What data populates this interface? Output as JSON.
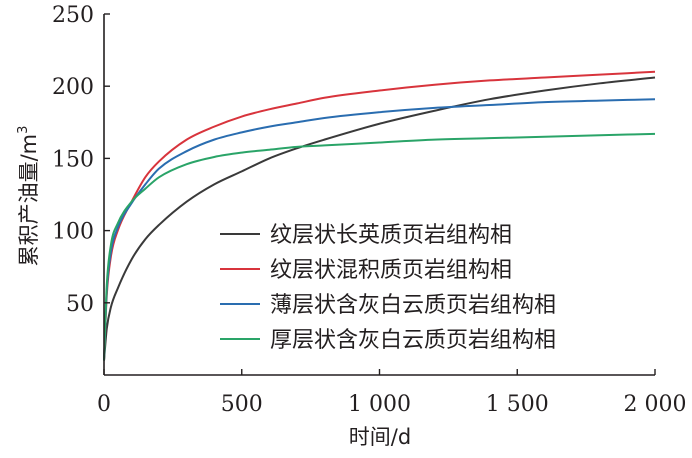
{
  "chart_data": {
    "type": "line",
    "xlabel": "时间/d",
    "ylabel": "累积产油量/m",
    "ylabel_sup": "3",
    "xlim": [
      0,
      2000
    ],
    "ylim": [
      0,
      250
    ],
    "xticks": [
      0,
      500,
      1000,
      1500,
      2000
    ],
    "xtick_labels": [
      "0",
      "500",
      "1 000",
      "1 500",
      "2 000"
    ],
    "yticks": [
      50,
      100,
      150,
      200,
      250
    ],
    "ytick_labels": [
      "50",
      "100",
      "150",
      "200",
      "250"
    ],
    "grid": false,
    "legend_position": "right",
    "series": [
      {
        "name": "纹层状长英质页岩组构相",
        "color": "#3a3a3a",
        "x": [
          0,
          10,
          25,
          50,
          100,
          150,
          200,
          300,
          400,
          500,
          600,
          700,
          800,
          1000,
          1200,
          1400,
          1600,
          1800,
          2000
        ],
        "y": [
          10,
          32,
          47,
          60,
          80,
          94,
          104,
          120,
          132,
          141,
          150,
          157,
          163,
          174,
          183,
          191,
          197,
          202,
          206
        ]
      },
      {
        "name": "纹层状混积质页岩组构相",
        "color": "#d8343c",
        "x": [
          0,
          10,
          25,
          50,
          100,
          150,
          200,
          300,
          400,
          500,
          600,
          700,
          800,
          1000,
          1200,
          1400,
          1600,
          1800,
          2000
        ],
        "y": [
          10,
          55,
          82,
          100,
          120,
          137,
          148,
          163,
          172,
          179,
          184,
          188,
          192,
          197,
          201,
          204,
          206,
          208,
          210
        ]
      },
      {
        "name": "薄层状含灰白云质页岩组构相",
        "color": "#2a6db0",
        "x": [
          0,
          10,
          25,
          50,
          100,
          150,
          200,
          300,
          400,
          500,
          600,
          700,
          800,
          1000,
          1200,
          1400,
          1600,
          1800,
          2000
        ],
        "y": [
          10,
          58,
          85,
          102,
          119,
          132,
          143,
          155,
          163,
          168,
          172,
          175,
          178,
          182,
          185,
          187,
          189,
          190,
          191
        ]
      },
      {
        "name": "厚层状含灰白云质页岩组构相",
        "color": "#2aa468",
        "x": [
          0,
          10,
          25,
          50,
          100,
          150,
          200,
          300,
          400,
          500,
          600,
          700,
          800,
          1000,
          1200,
          1400,
          1600,
          1800,
          2000
        ],
        "y": [
          10,
          62,
          90,
          105,
          120,
          129,
          137,
          146,
          151,
          154,
          156,
          158,
          159,
          161,
          163,
          164,
          165,
          166,
          167
        ]
      }
    ]
  }
}
